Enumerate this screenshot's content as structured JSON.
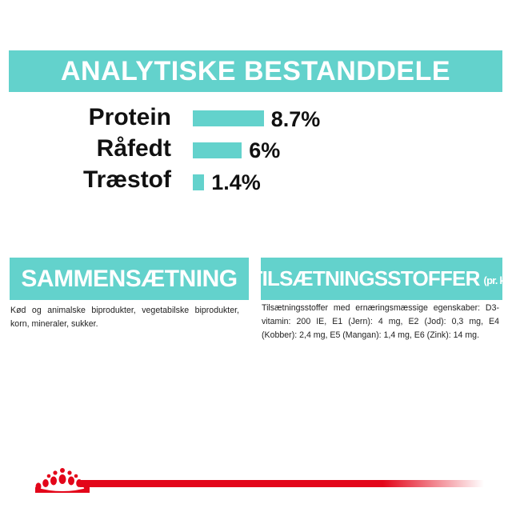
{
  "analytical": {
    "title": "ANALYTISKE BESTANDDELE",
    "items": [
      {
        "label": "Protein",
        "value_text": "8.7%",
        "value": 8.7
      },
      {
        "label": "Råfedt",
        "value_text": "6%",
        "value": 6
      },
      {
        "label": "Træstof",
        "value_text": "1.4%",
        "value": 1.4
      }
    ]
  },
  "composition": {
    "title": "SAMMENSÆTNING",
    "text": "Kød og animalske biprodukter, vegetabilske biprodukter, korn, mineraler, sukker."
  },
  "additives": {
    "title": "TILSÆTNINGSSTOFFER",
    "title_suffix": "(pr. kg)",
    "text": "Tilsætningsstoffer med ernæringsmæssige egenskaber: D3-vitamin: 200 IE, E1 (Jern): 4 mg, E2 (Jod): 0,3 mg, E4 (Kobber): 2,4 mg, E5 (Mangan): 1,4 mg, E6 (Zink): 14 mg."
  },
  "colors": {
    "accent": "#63d2cc",
    "brand_red": "#e3061a"
  },
  "brand_logo": "royal-canin-crown-icon"
}
